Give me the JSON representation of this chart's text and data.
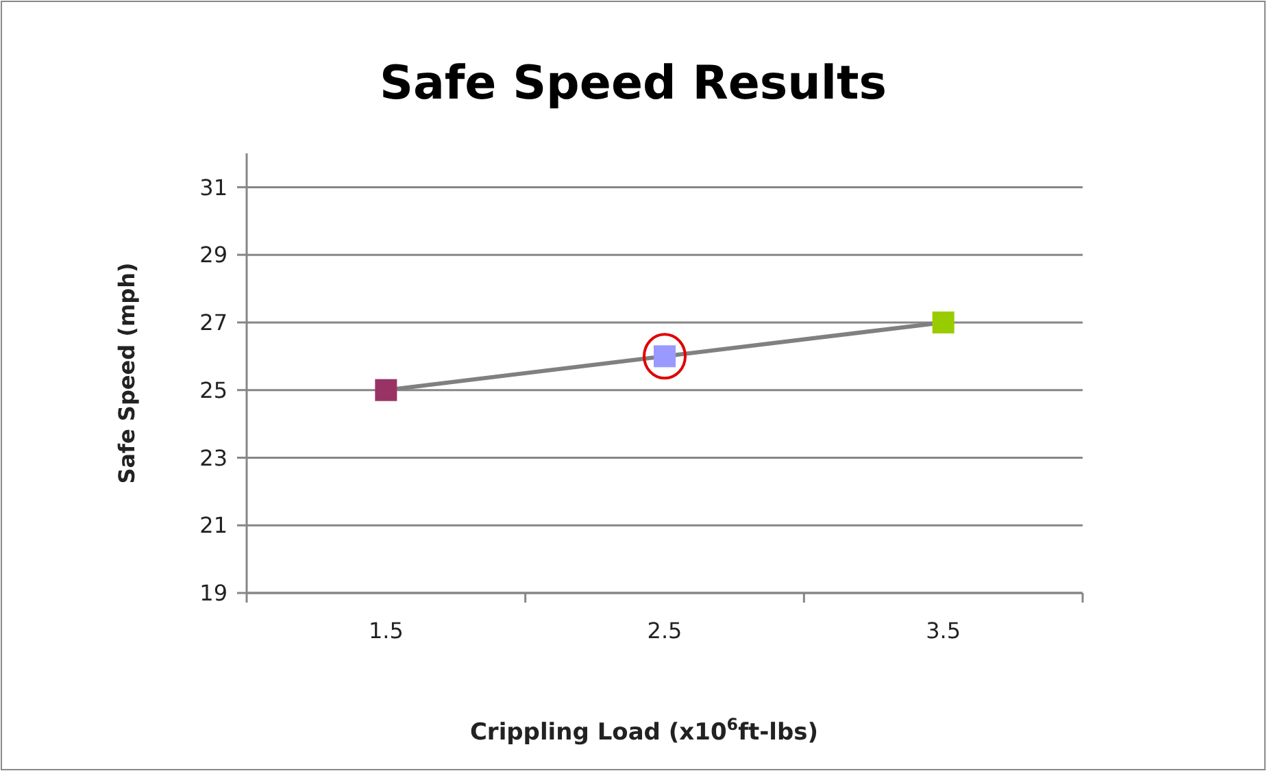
{
  "chart_data": {
    "type": "line",
    "title": "Safe Speed Results",
    "xlabel": "Crippling Load (x10$^{6}$ft-lbs)",
    "ylabel": "Safe Speed (mph)",
    "categories": [
      "1.5",
      "2.5",
      "3.5"
    ],
    "series": [
      {
        "color": "#808080",
        "colors": [
          "#993366",
          "#9999ff",
          "#99cc00"
        ],
        "values": [
          25,
          26,
          27
        ]
      }
    ],
    "ylim": [
      19,
      32
    ],
    "yticks": [
      19,
      21,
      23,
      25,
      27,
      29,
      31
    ],
    "grid": "y",
    "marker": "square",
    "line_style": "solid"
  }
}
